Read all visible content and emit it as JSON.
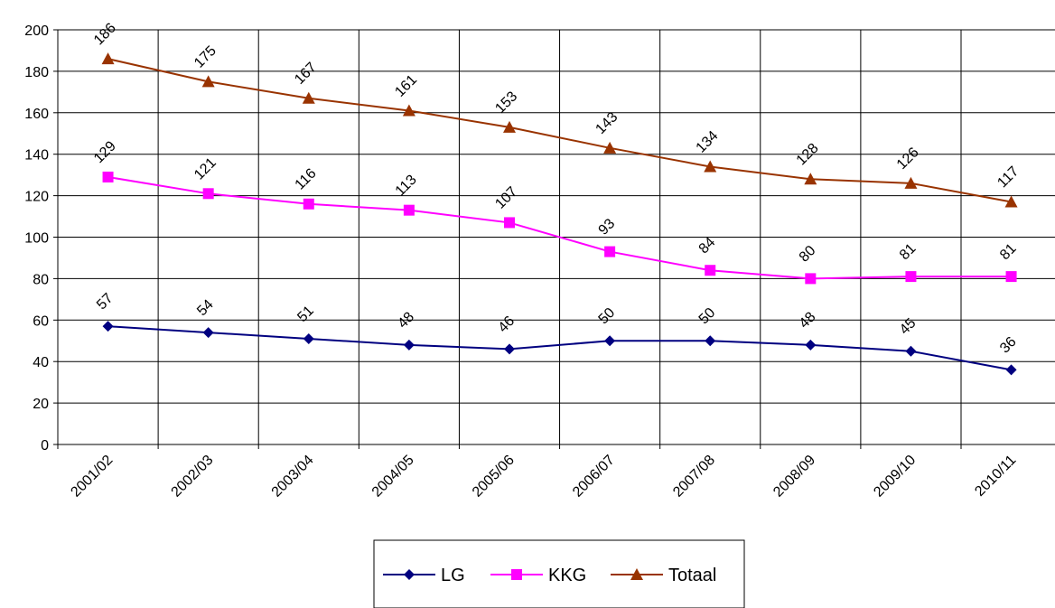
{
  "chart_data": {
    "type": "line",
    "categories": [
      "2001/02",
      "2002/03",
      "2003/04",
      "2004/05",
      "2005/06",
      "2006/07",
      "2007/08",
      "2008/09",
      "2009/10",
      "2010/11"
    ],
    "ylim": [
      0,
      200
    ],
    "yticks": [
      "0",
      "20",
      "40",
      "60",
      "80",
      "100",
      "120",
      "140",
      "160",
      "180",
      "200"
    ],
    "grid": true,
    "legend": "bottom",
    "series": [
      {
        "name": "LG",
        "values": [
          57,
          54,
          51,
          48,
          46,
          50,
          50,
          48,
          45,
          36
        ],
        "color": "#000080",
        "marker": "diamond"
      },
      {
        "name": "KKG",
        "values": [
          129,
          121,
          116,
          113,
          107,
          93,
          84,
          80,
          81,
          81
        ],
        "color": "#FF00FF",
        "marker": "square"
      },
      {
        "name": "Totaal",
        "values": [
          186,
          175,
          167,
          161,
          153,
          143,
          134,
          128,
          126,
          117
        ],
        "color": "#993300",
        "marker": "triangle"
      }
    ]
  }
}
